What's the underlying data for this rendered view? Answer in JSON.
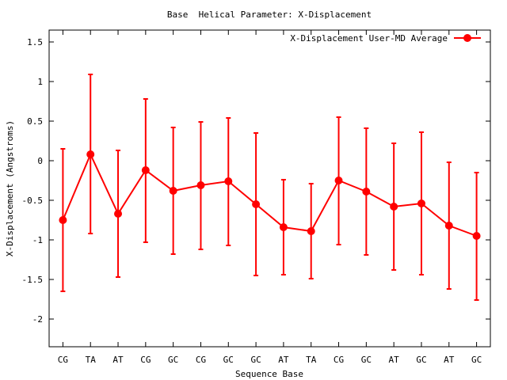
{
  "chart_data": {
    "type": "line",
    "title": "Base  Helical Parameter: X-Displacement",
    "xlabel": "Sequence Base",
    "ylabel": "X-Displacement (Angstroms)",
    "ylim": [
      -2.35,
      1.65
    ],
    "yticks": [
      1.5,
      1,
      0.5,
      0,
      -0.5,
      -1,
      -1.5,
      -2
    ],
    "ytick_labels": [
      "1.5",
      "1",
      "0.5",
      "0",
      "-0.5",
      "-1",
      "-1.5",
      "-2"
    ],
    "grid": false,
    "legend_position": "top-right",
    "categories": [
      "CG",
      "TA",
      "AT",
      "CG",
      "GC",
      "CG",
      "GC",
      "GC",
      "AT",
      "TA",
      "CG",
      "GC",
      "AT",
      "GC",
      "AT",
      "GC"
    ],
    "series": [
      {
        "name": "X-Displacement User-MD Average",
        "color": "#ff0000",
        "marker": "circle",
        "values": [
          -0.75,
          0.08,
          -0.67,
          -0.12,
          -0.38,
          -0.31,
          -0.26,
          -0.55,
          -0.84,
          -0.89,
          -0.25,
          -0.39,
          -0.58,
          -0.54,
          -0.82,
          -0.95
        ],
        "err_low": [
          -1.65,
          -0.92,
          -1.47,
          -1.03,
          -1.18,
          -1.12,
          -1.07,
          -1.45,
          -1.44,
          -1.49,
          -1.06,
          -1.19,
          -1.38,
          -1.44,
          -1.62,
          -1.76
        ],
        "err_high": [
          0.15,
          1.09,
          0.13,
          0.78,
          0.42,
          0.49,
          0.54,
          0.35,
          -0.24,
          -0.29,
          0.55,
          0.41,
          0.22,
          0.36,
          -0.02,
          -0.15
        ]
      }
    ]
  }
}
